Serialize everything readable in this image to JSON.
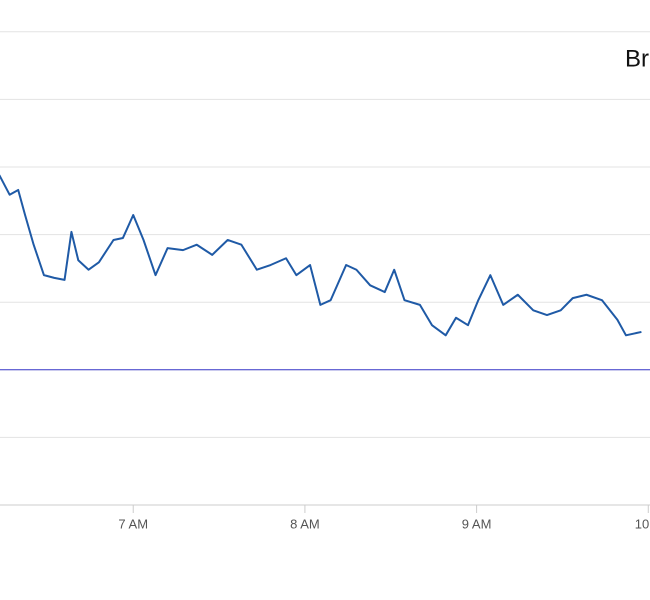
{
  "chart_data": {
    "type": "line",
    "title": "Br",
    "x": [
      6.22,
      6.28,
      6.33,
      6.37,
      6.42,
      6.48,
      6.54,
      6.6,
      6.64,
      6.68,
      6.74,
      6.8,
      6.885,
      6.94,
      7.0,
      7.06,
      7.13,
      7.2,
      7.29,
      7.37,
      7.46,
      7.55,
      7.63,
      7.72,
      7.8,
      7.89,
      7.95,
      8.03,
      8.09,
      8.15,
      8.24,
      8.3,
      8.38,
      8.465,
      8.52,
      8.58,
      8.67,
      8.74,
      8.82,
      8.88,
      8.95,
      9.01,
      9.08,
      9.155,
      9.24,
      9.33,
      9.41,
      9.49,
      9.56,
      9.64,
      9.73,
      9.82,
      9.87,
      9.96
    ],
    "series": [
      {
        "color": "#1f5aa6",
        "values": [
          4.88,
          4.59,
          4.66,
          4.29,
          3.85,
          3.4,
          3.36,
          3.33,
          4.04,
          3.62,
          3.48,
          3.59,
          3.92,
          3.95,
          4.29,
          3.92,
          3.4,
          3.8,
          3.77,
          3.85,
          3.7,
          3.92,
          3.85,
          3.48,
          3.55,
          3.65,
          3.4,
          3.55,
          2.96,
          3.03,
          3.55,
          3.48,
          3.25,
          3.15,
          3.48,
          3.03,
          2.96,
          2.66,
          2.51,
          2.77,
          2.66,
          3.03,
          3.4,
          2.96,
          3.11,
          2.88,
          2.81,
          2.88,
          3.06,
          3.11,
          3.03,
          2.74,
          2.51,
          2.56
        ]
      }
    ],
    "reference_line": {
      "value": 2,
      "color": "#3a3acc"
    },
    "xlim": [
      6.224,
      10.01
    ],
    "xticks": [
      {
        "value": 7,
        "label": "7 AM"
      },
      {
        "value": 8,
        "label": "8 AM"
      },
      {
        "value": 9,
        "label": "9 AM"
      },
      {
        "value": 10,
        "label": "10"
      }
    ],
    "ylim": [
      0,
      7.47
    ],
    "yticks": [
      1,
      2,
      3,
      4,
      5,
      6,
      7
    ],
    "grid": true
  }
}
